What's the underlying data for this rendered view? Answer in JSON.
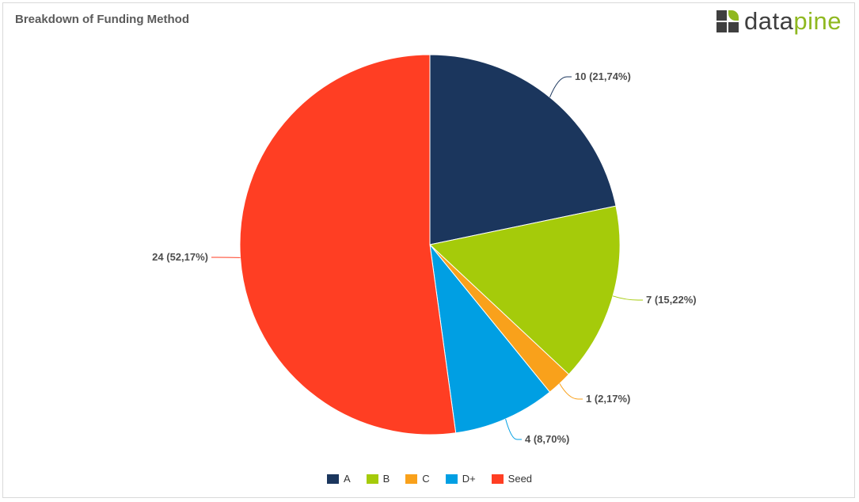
{
  "title": "Breakdown of Funding Method",
  "logo": {
    "text_dark": "data",
    "text_accent": "pine",
    "colors": {
      "dark": "#3f3f3f",
      "accent": "#8fb820"
    }
  },
  "chart_data": {
    "type": "pie",
    "title": "Breakdown of Funding Method",
    "legend_position": "bottom",
    "start_angle_deg": 0,
    "direction": "clockwise",
    "slices": [
      {
        "name": "A",
        "value": 10,
        "percent": "21,74%",
        "label": "10 (21,74%)",
        "color": "#1b365d"
      },
      {
        "name": "B",
        "value": 7,
        "percent": "15,22%",
        "label": "7 (15,22%)",
        "color": "#a5cb0a"
      },
      {
        "name": "C",
        "value": 1,
        "percent": "2,17%",
        "label": "1 (2,17%)",
        "color": "#f9a11b"
      },
      {
        "name": "D+",
        "value": 4,
        "percent": "8,70%",
        "label": "4 (8,70%)",
        "color": "#009fe3"
      },
      {
        "name": "Seed",
        "value": 24,
        "percent": "52,17%",
        "label": "24 (52,17%)",
        "color": "#ff3e23"
      }
    ]
  }
}
